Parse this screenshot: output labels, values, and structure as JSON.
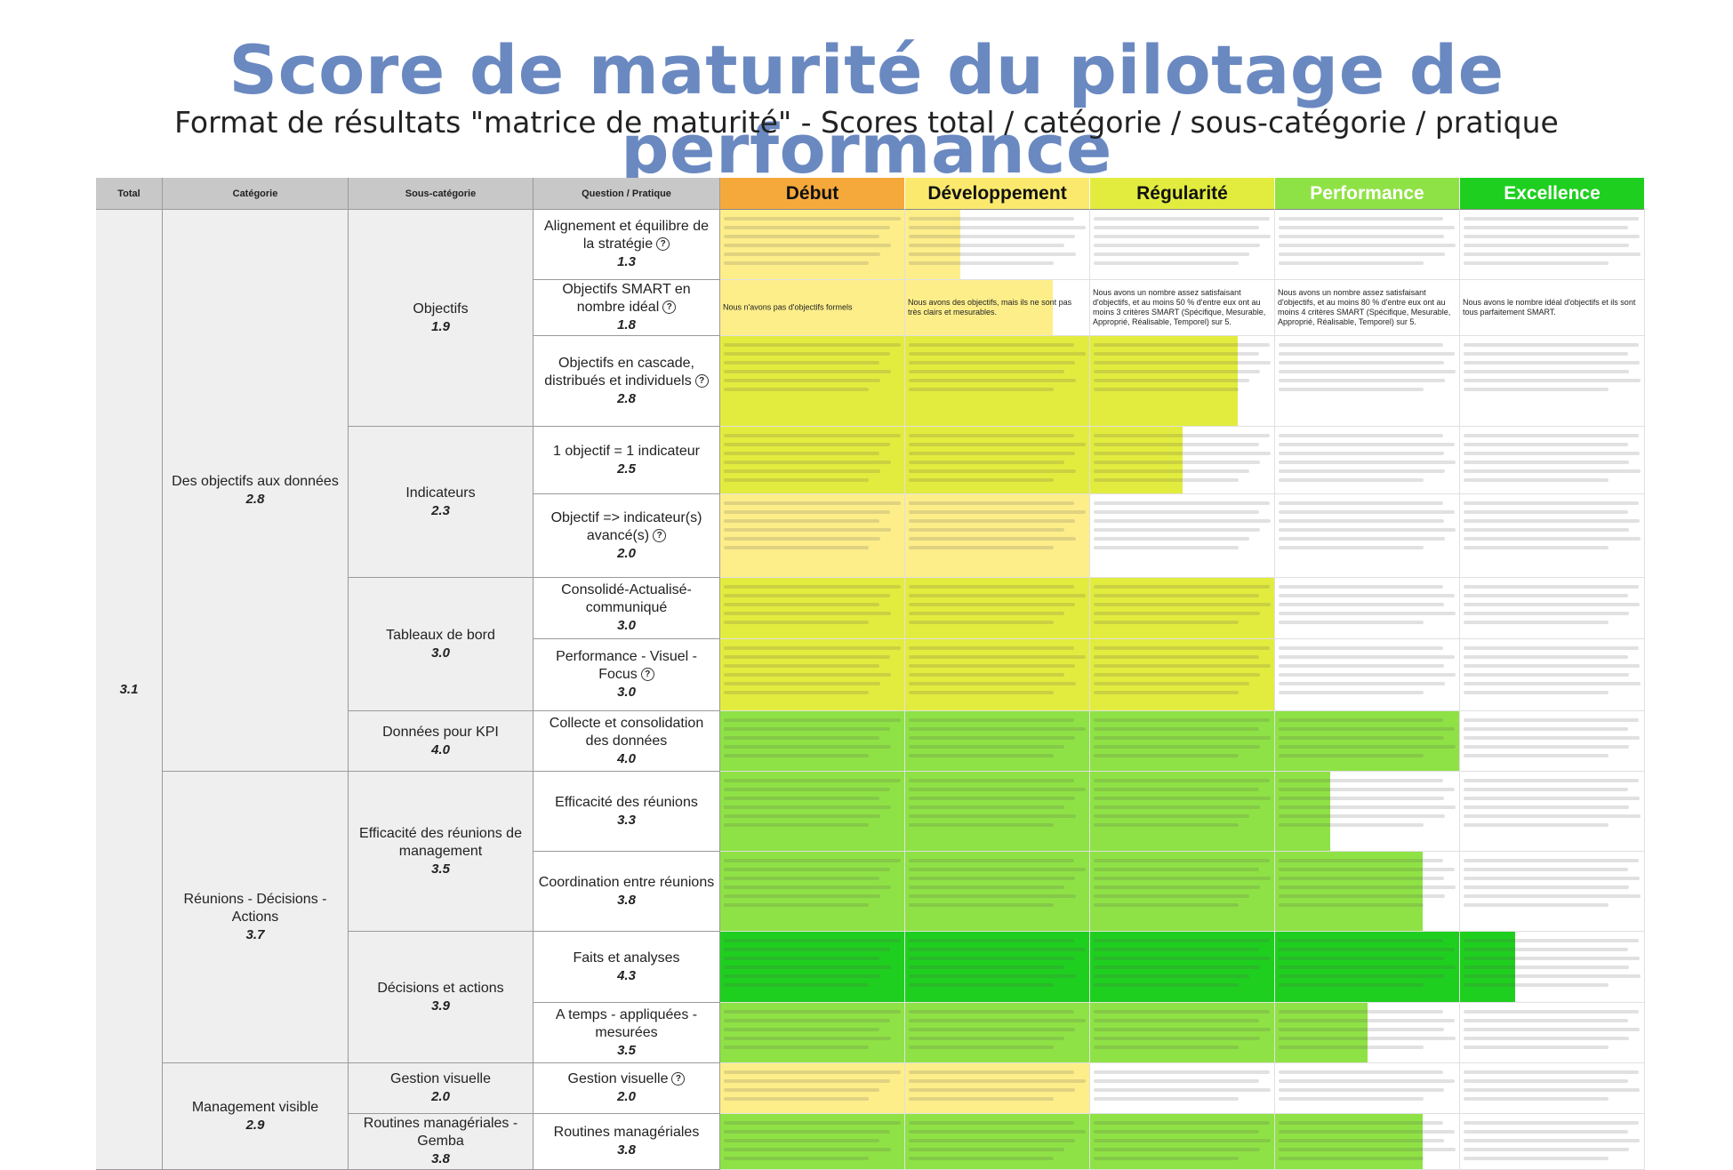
{
  "title": "Score de maturité du pilotage de performance",
  "subtitle": "Format de résultats \"matrice de maturité\" - Scores total / catégorie / sous-catégorie / pratique",
  "headers": {
    "total": "Total",
    "category": "Catégorie",
    "subcategory": "Sous-catégorie",
    "question": "Question / Pratique"
  },
  "levels": [
    {
      "label": "Début",
      "color": "#f6a93b",
      "light_text": false
    },
    {
      "label": "Développement",
      "color": "#fbe96e",
      "light_text": false
    },
    {
      "label": "Régularité",
      "color": "#e2ec3e",
      "light_text": false
    },
    {
      "label": "Performance",
      "color": "#8fe245",
      "light_text": true
    },
    {
      "label": "Excellence",
      "color": "#1fcf1f",
      "light_text": true
    }
  ],
  "total": {
    "score": "3.1"
  },
  "categories": [
    {
      "label": "Des objectifs aux données",
      "score": "2.8"
    },
    {
      "label": "Réunions - Décisions - Actions",
      "score": "3.7"
    },
    {
      "label": "Management visible",
      "score": "2.9"
    }
  ],
  "subcategories": [
    {
      "label": "Objectifs",
      "score": "1.9"
    },
    {
      "label": "Indicateurs",
      "score": "2.3"
    },
    {
      "label": "Tableaux de bord",
      "score": "3.0"
    },
    {
      "label": "Données pour KPI",
      "score": "4.0"
    },
    {
      "label": "Efficacité des réunions de management",
      "score": "3.5"
    },
    {
      "label": "Décisions et actions",
      "score": "3.9"
    },
    {
      "label": "Gestion visuelle",
      "score": "2.0"
    },
    {
      "label": "Routines managériales - Gemba",
      "score": "3.8"
    }
  ],
  "questions": [
    {
      "label": "Alignement et équilibre de la stratégie",
      "help": "?",
      "score": "1.3",
      "fill_color": "#fdee8a",
      "fill_levels": 1.3,
      "texts": [
        "",
        "",
        "",
        "",
        ""
      ]
    },
    {
      "label": "Objectifs SMART en nombre idéal",
      "help": "?",
      "score": "1.8",
      "fill_color": "#fdee8a",
      "fill_levels": 1.8,
      "texts": [
        "Nous n'avons pas d'objectifs formels",
        "Nous avons des objectifs, mais ils ne sont pas très clairs et mesurables.",
        "Nous avons un nombre assez satisfaisant d'objectifs, et au moins 50 % d'entre eux ont au moins 3 critères SMART (Spécifique, Mesurable, Approprié, Réalisable, Temporel) sur 5.",
        "Nous avons un nombre assez satisfaisant d'objectifs, et au moins 80 % d'entre eux ont au moins 4 critères SMART (Spécifique, Mesurable, Approprié, Réalisable, Temporel) sur 5.",
        "Nous avons le nombre idéal d'objectifs et ils sont tous parfaitement SMART."
      ]
    },
    {
      "label": "Objectifs en cascade, distribués et individuels",
      "help": "?",
      "score": "2.8",
      "fill_color": "#e2ec3e",
      "fill_levels": 2.8,
      "texts": [
        "",
        "",
        "",
        "",
        ""
      ]
    },
    {
      "label": "1 objectif = 1 indicateur",
      "help": "",
      "score": "2.5",
      "fill_color": "#e2ec3e",
      "fill_levels": 2.5,
      "texts": [
        "",
        "",
        "",
        "",
        ""
      ]
    },
    {
      "label": "Objectif => indicateur(s) avancé(s)",
      "help": "?",
      "score": "2.0",
      "fill_color": "#fdee8a",
      "fill_levels": 2.0,
      "texts": [
        "",
        "",
        "",
        "",
        ""
      ]
    },
    {
      "label": "Consolidé-Actualisé-communiqué",
      "help": "",
      "score": "3.0",
      "fill_color": "#e2ec3e",
      "fill_levels": 3.0,
      "texts": [
        "",
        "",
        "",
        "",
        ""
      ]
    },
    {
      "label": "Performance - Visuel - Focus",
      "help": "?",
      "score": "3.0",
      "fill_color": "#e2ec3e",
      "fill_levels": 3.0,
      "texts": [
        "",
        "",
        "",
        "",
        ""
      ]
    },
    {
      "label": "Collecte et consolidation des données",
      "help": "",
      "score": "4.0",
      "fill_color": "#8fe245",
      "fill_levels": 4.0,
      "texts": [
        "",
        "",
        "",
        "",
        ""
      ]
    },
    {
      "label": "Efficacité des réunions",
      "help": "",
      "score": "3.3",
      "fill_color": "#8fe245",
      "fill_levels": 3.3,
      "texts": [
        "",
        "",
        "",
        "",
        ""
      ]
    },
    {
      "label": "Coordination entre réunions",
      "help": "",
      "score": "3.8",
      "fill_color": "#8fe245",
      "fill_levels": 3.8,
      "texts": [
        "",
        "",
        "",
        "",
        ""
      ]
    },
    {
      "label": "Faits et analyses",
      "help": "",
      "score": "4.3",
      "fill_color": "#1fcf1f",
      "fill_levels": 4.3,
      "texts": [
        "",
        "",
        "",
        "",
        ""
      ]
    },
    {
      "label": "A temps - appliquées - mesurées",
      "help": "",
      "score": "3.5",
      "fill_color": "#8fe245",
      "fill_levels": 3.5,
      "texts": [
        "",
        "",
        "",
        "",
        ""
      ]
    },
    {
      "label": "Gestion visuelle",
      "help": "?",
      "score": "2.0",
      "fill_color": "#fdee8a",
      "fill_levels": 2.0,
      "texts": [
        "",
        "",
        "",
        "",
        ""
      ]
    },
    {
      "label": "Routines managériales",
      "help": "",
      "score": "3.8",
      "fill_color": "#8fe245",
      "fill_levels": 3.8,
      "texts": [
        "",
        "",
        "",
        "",
        ""
      ]
    }
  ]
}
